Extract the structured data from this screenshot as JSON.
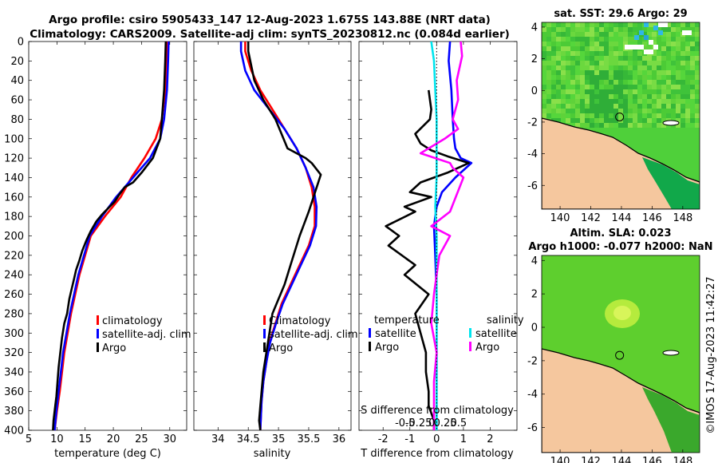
{
  "header": {
    "line1": "Argo profile: csiro 5905433_147 12-Aug-2023 1.675S 143.88E (NRT data)",
    "line2": "Climatology: CARS2009. Satellite-adj clim: synTS_20230812.nc (0.084d earlier)"
  },
  "sst_map": {
    "title": "sat. SST: 29.6 Argo: 29",
    "x_ticks": [
      "140",
      "142",
      "144",
      "146",
      "148"
    ],
    "y_ticks": [
      "4",
      "2",
      "0",
      "-2",
      "-4",
      "-6"
    ],
    "x_range": [
      138.8,
      149.1
    ],
    "y_range": [
      -7.5,
      4.3
    ],
    "float_lon": 143.88,
    "float_lat": -1.675
  },
  "sla_map": {
    "title1": "Altim. SLA: 0.023",
    "title2": "Argo h1000: -0.077 h2000: NaN",
    "x_ticks": [
      "140",
      "142",
      "144",
      "146",
      "148"
    ],
    "y_ticks": [
      "4",
      "2",
      "0",
      "-2",
      "-4",
      "-6"
    ],
    "x_range": [
      138.8,
      149.1
    ],
    "y_range": [
      -7.5,
      4.3
    ],
    "float_lon": 143.88,
    "float_lat": -1.675
  },
  "credit": "©IMOS 17-Aug-2023 11:42:27",
  "colors": {
    "climatology": "#ff0000",
    "satellite": "#0000ff",
    "argo": "#000000",
    "salinity_satellite": "#00e5ee",
    "salinity_argo": "#ff00ff",
    "land": "#f5c79e"
  },
  "chart_data": [
    {
      "type": "line",
      "name": "temperature",
      "xlabel": "temperature (deg C)",
      "ylabel": "",
      "xlim": [
        5,
        33
      ],
      "ylim": [
        400,
        0
      ],
      "x_ticks": [
        5,
        10,
        15,
        20,
        25,
        30
      ],
      "y_ticks": [
        0,
        20,
        40,
        60,
        80,
        100,
        120,
        140,
        160,
        180,
        200,
        220,
        240,
        260,
        280,
        300,
        320,
        340,
        360,
        380,
        400
      ],
      "legend": [
        "climatology",
        "satellite-adj. clim",
        "Argo"
      ],
      "series": [
        {
          "name": "climatology",
          "color": "#ff0000",
          "x": [
            29.6,
            29.5,
            29.2,
            28.6,
            27.5,
            25.5,
            23.2,
            21.3,
            18.5,
            16.0,
            14.0,
            12.5,
            11.3,
            10.5,
            10.0,
            9.6
          ],
          "depth": [
            0,
            20,
            50,
            80,
            100,
            120,
            140,
            160,
            180,
            200,
            240,
            280,
            320,
            360,
            380,
            400
          ]
        },
        {
          "name": "satellite-adj. clim",
          "color": "#0000ff",
          "x": [
            29.8,
            29.7,
            29.5,
            29.0,
            28.3,
            26.5,
            23.5,
            20.5,
            18.0,
            15.8,
            13.8,
            12.3,
            11.1,
            10.3,
            9.9,
            9.6
          ],
          "depth": [
            0,
            20,
            50,
            80,
            100,
            120,
            140,
            160,
            180,
            200,
            240,
            280,
            320,
            360,
            380,
            400
          ]
        },
        {
          "name": "Argo",
          "color": "#000000",
          "x": [
            29.3,
            29.2,
            29.0,
            28.6,
            28.3,
            27.0,
            25.0,
            23.5,
            22.0,
            21.0,
            20.2,
            19.0,
            18.0,
            17.0,
            16.0,
            15.2,
            14.5,
            14.0,
            13.4,
            13.0,
            12.6,
            12.2,
            11.8,
            11.3,
            10.9,
            10.6,
            10.3,
            10.1,
            9.9,
            9.6,
            9.4,
            9.3
          ],
          "depth": [
            0,
            20,
            50,
            80,
            100,
            120,
            135,
            145,
            150,
            158,
            165,
            172,
            178,
            185,
            195,
            205,
            215,
            225,
            235,
            245,
            255,
            265,
            280,
            290,
            305,
            320,
            335,
            350,
            365,
            380,
            390,
            400
          ]
        }
      ]
    },
    {
      "type": "line",
      "name": "salinity",
      "xlabel": "salinity",
      "xlim": [
        33.6,
        36.2
      ],
      "ylim": [
        400,
        0
      ],
      "x_ticks": [
        34,
        34.5,
        35,
        35.5,
        36
      ],
      "legend": [
        "Climatology",
        "satellite-adj. clim",
        "Argo"
      ],
      "series": [
        {
          "name": "Climatology",
          "color": "#ff0000",
          "x": [
            34.45,
            34.45,
            34.55,
            34.7,
            34.9,
            35.1,
            35.3,
            35.45,
            35.55,
            35.6,
            35.6,
            35.5,
            35.35,
            35.2,
            35.05,
            34.95,
            34.85,
            34.8,
            34.75,
            34.72,
            34.7
          ],
          "depth": [
            0,
            10,
            30,
            50,
            70,
            90,
            110,
            130,
            150,
            170,
            190,
            210,
            230,
            250,
            270,
            290,
            310,
            330,
            350,
            370,
            400
          ]
        },
        {
          "name": "satellite-adj. clim",
          "color": "#0000ff",
          "x": [
            34.38,
            34.38,
            34.45,
            34.6,
            34.85,
            35.1,
            35.3,
            35.45,
            35.58,
            35.63,
            35.62,
            35.52,
            35.37,
            35.22,
            35.07,
            34.96,
            34.86,
            34.8,
            34.75,
            34.72,
            34.7
          ],
          "depth": [
            0,
            10,
            30,
            50,
            70,
            90,
            110,
            130,
            150,
            170,
            190,
            210,
            230,
            250,
            270,
            290,
            310,
            330,
            350,
            370,
            400
          ]
        },
        {
          "name": "Argo",
          "color": "#000000",
          "x": [
            34.5,
            34.5,
            34.6,
            34.75,
            34.95,
            35.05,
            35.15,
            35.3,
            35.45,
            35.55,
            35.7,
            35.5,
            35.35,
            35.2,
            35.1,
            35.0,
            34.9,
            34.85,
            34.8,
            34.75,
            34.72,
            34.7,
            34.68,
            34.7
          ],
          "depth": [
            0,
            10,
            40,
            60,
            80,
            95,
            110,
            115,
            120,
            125,
            137,
            175,
            200,
            230,
            250,
            265,
            280,
            300,
            320,
            340,
            360,
            375,
            390,
            400
          ]
        }
      ]
    },
    {
      "type": "line",
      "name": "differences",
      "xlabel": "T difference from climatology",
      "xlabel_top": "S difference from climatology",
      "xlim": [
        -2.9,
        3.0
      ],
      "ylim": [
        400,
        0
      ],
      "x_ticks": [
        -2,
        -1,
        0,
        1,
        2
      ],
      "s_ticks": [
        "-0.5",
        "-0.25",
        "0",
        "0.25",
        "0.5"
      ],
      "legend_left_title": "temperature",
      "legend_right_title": "salinity",
      "legend_left": [
        "satellite",
        "Argo"
      ],
      "legend_right": [
        "satellite",
        "Argo"
      ],
      "series": [
        {
          "name": "T satellite",
          "color": "#0000ff",
          "x": [
            0.5,
            0.45,
            0.55,
            0.6,
            0.65,
            0.7,
            0.9,
            1.3,
            0.7,
            0.2,
            0.0,
            -0.1,
            -0.05,
            0.0,
            0.0,
            0.0,
            0.0,
            0.0,
            0.0,
            0.0
          ],
          "depth": [
            0,
            20,
            50,
            80,
            100,
            110,
            120,
            125,
            140,
            155,
            170,
            190,
            220,
            260,
            300,
            330,
            360,
            380,
            390,
            400
          ]
        },
        {
          "name": "T Argo",
          "color": "#000000",
          "x": [
            -0.3,
            -0.25,
            -0.2,
            -0.25,
            -0.8,
            -0.6,
            -0.2,
            0.4,
            1.2,
            0.4,
            -0.6,
            -1.0,
            -0.2,
            -1.2,
            -0.8,
            -1.9,
            -1.4,
            -1.8,
            -0.8,
            -1.2,
            -0.3,
            -0.8,
            -0.6,
            -0.4,
            -0.4,
            -0.3,
            -0.3,
            -0.1,
            -0.1
          ],
          "depth": [
            50,
            60,
            70,
            80,
            95,
            105,
            112,
            118,
            125,
            135,
            145,
            155,
            160,
            170,
            175,
            190,
            200,
            210,
            230,
            240,
            260,
            280,
            300,
            320,
            340,
            360,
            375,
            390,
            400
          ]
        },
        {
          "name": "S satellite",
          "color": "#00e5ee",
          "x": [
            -0.2,
            -0.1,
            -0.05,
            0.0,
            0.0,
            0.0,
            -0.05,
            0.0,
            0.0,
            0.0,
            0.0,
            0.0,
            0.0,
            0.0,
            0.0
          ],
          "depth": [
            0,
            20,
            50,
            80,
            110,
            140,
            170,
            200,
            230,
            260,
            290,
            320,
            350,
            380,
            400
          ]
        },
        {
          "name": "S Argo",
          "color": "#ff00ff",
          "x": [
            0.9,
            0.95,
            0.75,
            0.8,
            0.6,
            0.8,
            0.3,
            -0.6,
            0.5,
            0.6,
            1.0,
            0.5,
            -0.2,
            0.5,
            0.1,
            0.0,
            -0.1,
            -0.2,
            0.0,
            -0.1,
            -0.1,
            -0.1
          ],
          "depth": [
            0,
            15,
            40,
            60,
            80,
            90,
            100,
            115,
            125,
            130,
            140,
            175,
            190,
            200,
            220,
            240,
            260,
            290,
            320,
            350,
            380,
            400
          ]
        }
      ]
    }
  ]
}
